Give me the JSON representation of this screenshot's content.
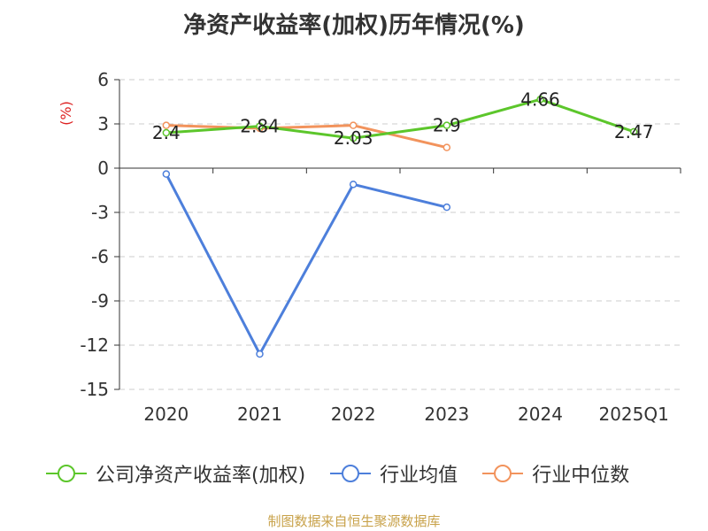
{
  "chart_data": {
    "type": "line",
    "title": "净资产收益率(加权)历年情况(%)",
    "ylabel": "(%)",
    "categories": [
      "2020",
      "2021",
      "2022",
      "2023",
      "2024",
      "2025Q1"
    ],
    "ylim": [
      -15,
      6
    ],
    "yticks": [
      6,
      3,
      0,
      -3,
      -6,
      -9,
      -12,
      -15
    ],
    "ytick_labels": [
      "6",
      "3",
      "0",
      "-3",
      "-6",
      "-9",
      "-12",
      "-15"
    ],
    "grid": true,
    "legend": "bottom",
    "series": [
      {
        "name": "公司净资产收益率(加权)",
        "color": "#5cc62b",
        "values": [
          2.4,
          2.84,
          2.03,
          2.9,
          4.66,
          2.47
        ],
        "labels": [
          "2.4",
          "2.84",
          "2.03",
          "2.9",
          "4.66",
          "2.47"
        ]
      },
      {
        "name": "行业均值",
        "color": "#4d7fdb",
        "values": [
          -0.4,
          -12.6,
          -1.1,
          -2.65,
          null,
          null
        ]
      },
      {
        "name": "行业中位数",
        "color": "#f2935c",
        "values": [
          2.9,
          2.7,
          2.9,
          1.4,
          null,
          null
        ]
      }
    ]
  },
  "colors": {
    "ylabel": "#dd2222",
    "footer": "#c8a24a",
    "axis": "#333333",
    "grid": "#cccccc"
  },
  "footer": "制图数据来自恒生聚源数据库"
}
